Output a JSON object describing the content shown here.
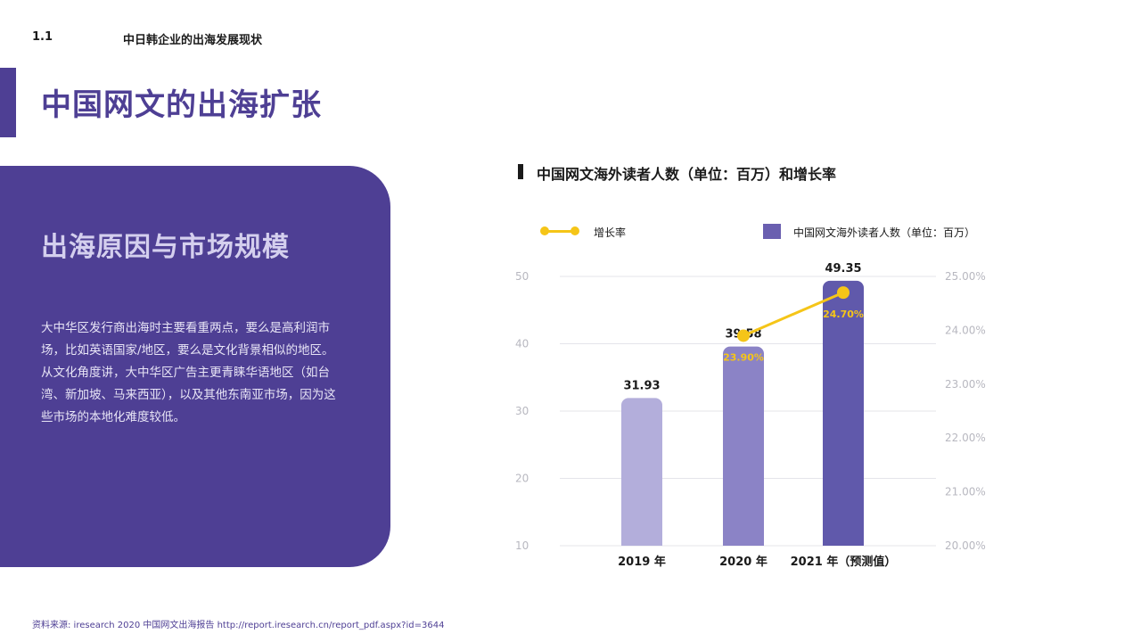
{
  "header": {
    "section_num": "1.1",
    "section_title": "中日韩企业的出海发展现状"
  },
  "page_title": "中国网文的出海扩张",
  "panel": {
    "heading": "出海原因与市场规模",
    "body": "大中华区发行商出海时主要看重两点，要么是高利润市场，比如英语国家/地区，要么是文化背景相似的地区。从文化角度讲，大中华区广告主更青睐华语地区（如台湾、新加坡、马来西亚），以及其他东南亚市场，因为这些市场的本地化难度较低。"
  },
  "chart_data": {
    "type": "bar",
    "title": "中国网文海外读者人数（单位：百万）和增长率",
    "categories": [
      "2019 年",
      "2020 年",
      "2021 年（预测值）"
    ],
    "series": [
      {
        "name": "中国网文海外读者人数（单位：百万）",
        "type": "bar",
        "axis": "left",
        "values": [
          31.93,
          39.58,
          49.35
        ],
        "labels": [
          "31.93",
          "39.58",
          "49.35"
        ],
        "colors": [
          "#b3aedb",
          "#8b83c6",
          "#6059ab"
        ]
      },
      {
        "name": "增长率",
        "type": "line",
        "axis": "right",
        "values": [
          null,
          23.9,
          24.7
        ],
        "labels": [
          "",
          "23.90%",
          "24.70%"
        ],
        "color": "#f5c518"
      }
    ],
    "left_axis": {
      "ylim": [
        10,
        50
      ],
      "ticks": [
        "10",
        "20",
        "30",
        "40",
        "50"
      ]
    },
    "right_axis": {
      "ylim": [
        20.0,
        25.0
      ],
      "ticks": [
        "20.00%",
        "21.00%",
        "22.00%",
        "23.00%",
        "24.00%",
        "25.00%"
      ]
    },
    "legend_position": "top"
  },
  "source": "资料来源: iresearch 2020 中国网文出海报告 http://report.iresearch.cn/report_pdf.aspx?id=3644"
}
